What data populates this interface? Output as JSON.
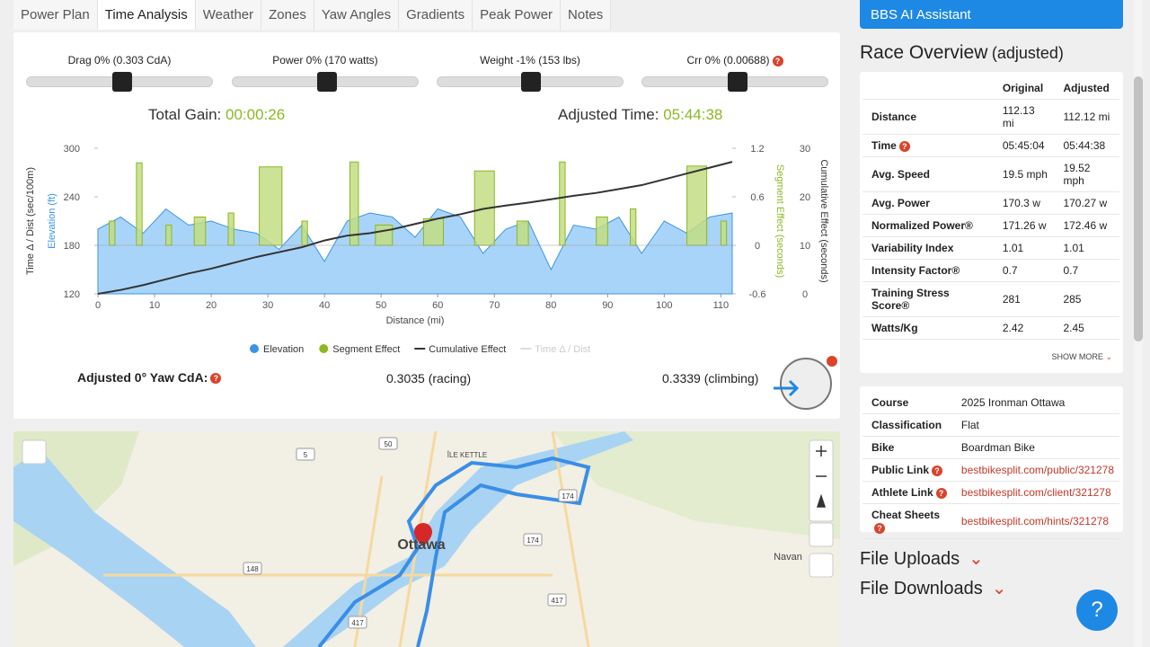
{
  "tabs": [
    "Power Plan",
    "Time Analysis",
    "Weather",
    "Zones",
    "Yaw Angles",
    "Gradients",
    "Peak Power",
    "Notes"
  ],
  "sliders": [
    "Drag 0% (0.303 CdA)",
    "Power 0% (170 watts)",
    "Weight -1% (153 lbs)",
    "Crr 0% (0.00688)"
  ],
  "summary": {
    "gain_label": "Total Gain:",
    "gain": "00:00:26",
    "time_label": "Adjusted Time:",
    "time": "05:44:38"
  },
  "chart_data": {
    "type": "combo",
    "x_label": "Distance (mi)",
    "y_label": "Time Δ / Dist (sec/100m)",
    "y_label_elevation": "Elevation (ft)",
    "y2_label": "Segment Effect (seconds)",
    "y3_label": "Cumulative Effect (seconds)",
    "xlim": [
      0,
      112
    ],
    "xticks": [
      0,
      10,
      20,
      30,
      40,
      50,
      60,
      70,
      80,
      90,
      100,
      110
    ],
    "ylim": [
      120,
      300
    ],
    "yticks": [
      120,
      180,
      240,
      300
    ],
    "y2lim": [
      -0.6,
      1.2
    ],
    "y2ticks": [
      -0.6,
      0,
      0.6,
      1.2
    ],
    "y3lim": [
      0,
      30
    ],
    "y3ticks": [
      0,
      10,
      20,
      30
    ],
    "series": [
      {
        "name": "Elevation",
        "color": "#3a95e8",
        "kind": "area",
        "x": [
          0,
          4,
          8,
          12,
          16,
          20,
          24,
          28,
          32,
          36,
          40,
          44,
          48,
          52,
          56,
          60,
          64,
          68,
          72,
          76,
          80,
          84,
          88,
          92,
          96,
          100,
          104,
          108,
          112
        ],
        "values": [
          200,
          215,
          195,
          225,
          205,
          210,
          200,
          195,
          175,
          205,
          160,
          210,
          220,
          215,
          190,
          225,
          215,
          170,
          200,
          210,
          150,
          205,
          200,
          215,
          170,
          210,
          195,
          215,
          220
        ]
      },
      {
        "name": "Segment Effect",
        "color": "#8bb822",
        "kind": "bar",
        "axis": "y2",
        "x0": [
          2,
          6.8,
          12,
          17,
          23,
          28.5,
          36,
          44.5,
          49,
          57.5,
          66.5,
          74,
          81.5,
          88,
          94,
          104,
          110
        ],
        "x1": [
          3,
          7.8,
          13,
          19,
          24,
          32.5,
          37,
          46,
          52,
          61,
          70,
          76,
          82.5,
          90,
          95,
          107.5,
          111
        ],
        "values": [
          0.3,
          1.02,
          0.25,
          0.35,
          0.4,
          0.97,
          0.3,
          1.03,
          0.25,
          0.33,
          0.92,
          0.3,
          1.03,
          0.35,
          0.45,
          0.98,
          0.3
        ]
      },
      {
        "name": "Cumulative Effect",
        "color": "#333333",
        "kind": "line",
        "axis": "y3",
        "x": [
          0,
          4,
          8,
          12,
          16,
          20,
          24,
          28,
          32,
          36,
          40,
          44,
          48,
          52,
          56,
          60,
          64,
          68,
          72,
          76,
          80,
          84,
          88,
          92,
          96,
          100,
          104,
          108,
          112
        ],
        "values": [
          0,
          0.8,
          1.8,
          3,
          4.2,
          5.2,
          6.4,
          7.6,
          8.6,
          9.6,
          11,
          12,
          12.5,
          13.3,
          14.4,
          15.5,
          16.4,
          17.5,
          18.2,
          18.8,
          19.5,
          20.2,
          20.8,
          21.6,
          22.4,
          23.6,
          24.8,
          26,
          27.2
        ]
      },
      {
        "name": "Time Δ / Dist",
        "color": "#dddddd",
        "kind": "line",
        "hidden": true,
        "x": [],
        "values": []
      }
    ]
  },
  "cda": {
    "label": "Adjusted 0° Yaw CdA:",
    "racing": "0.3035 (racing)",
    "climbing": "0.3339 (climbing)"
  },
  "map": {
    "places": [
      "Ottawa",
      "Navan",
      "ÎLE KETTLE"
    ],
    "roads": [
      "50",
      "5",
      "174",
      "174",
      "148",
      "417",
      "417"
    ]
  },
  "assistant": "BBS AI Assistant",
  "overview": {
    "title": "Race Overview",
    "subtitle": "(adjusted)",
    "columns": [
      "Original",
      "Adjusted"
    ],
    "rows": [
      [
        "Distance",
        "112.13 mi",
        "112.12 mi"
      ],
      [
        "Time",
        "05:45:04",
        "05:44:38"
      ],
      [
        "Avg. Speed",
        "19.5 mph",
        "19.52 mph"
      ],
      [
        "Avg. Power",
        "170.3 w",
        "170.27 w"
      ],
      [
        "Normalized Power®",
        "171.26 w",
        "172.46 w"
      ],
      [
        "Variability Index",
        "1.01",
        "1.01"
      ],
      [
        "Intensity Factor®",
        "0.7",
        "0.7"
      ],
      [
        "Training Stress Score®",
        "281",
        "285"
      ],
      [
        "Watts/Kg",
        "2.42",
        "2.45"
      ]
    ],
    "more": "SHOW MORE"
  },
  "course": {
    "rows": [
      [
        "Course",
        "2025 Ironman Ottawa"
      ],
      [
        "Classification",
        "Flat"
      ],
      [
        "Bike",
        "Boardman Bike"
      ],
      [
        "Public Link",
        "bestbikesplit.com/public/321278"
      ],
      [
        "Athlete Link",
        "bestbikesplit.com/client/321278"
      ],
      [
        "Cheat Sheets",
        "bestbikesplit.com/hints/321278"
      ]
    ]
  },
  "sections": [
    "File Uploads",
    "File Downloads"
  ],
  "help": "?"
}
